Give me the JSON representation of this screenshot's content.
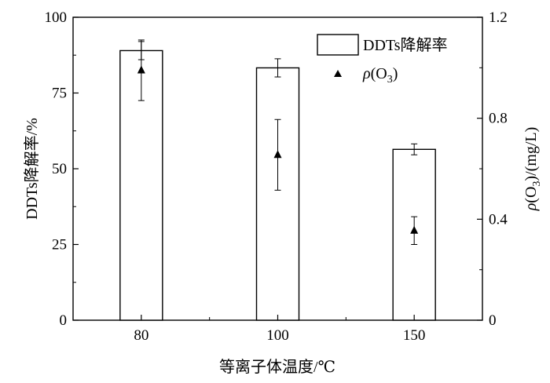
{
  "chart_data": {
    "type": "bar",
    "categories": [
      "80",
      "100",
      "150"
    ],
    "xlabel": "等离子体温度/℃",
    "ylabel_left": "DDTs降解率/%",
    "ylabel_right": "ρ(O3)/(mg/L)",
    "ylim_left": [
      0,
      100
    ],
    "ylim_right": [
      0,
      1.2
    ],
    "yticks_left": [
      "0",
      "25",
      "50",
      "75",
      "100"
    ],
    "yticks_right": [
      "0",
      "0.4",
      "0.8",
      "1.2"
    ],
    "legend_position": "top-right",
    "series": [
      {
        "name": "DDTs降解率",
        "kind": "bar",
        "axis": "left",
        "values": [
          89,
          83.3,
          56.4
        ],
        "error": [
          3.0,
          3.0,
          1.8
        ],
        "color": "#ffffff"
      },
      {
        "name": "ρ(O3)",
        "kind": "marker-triangle",
        "axis": "right",
        "values": [
          0.99,
          0.655,
          0.355
        ],
        "error": [
          0.12,
          0.14,
          0.055
        ],
        "color": "#000000"
      }
    ]
  }
}
